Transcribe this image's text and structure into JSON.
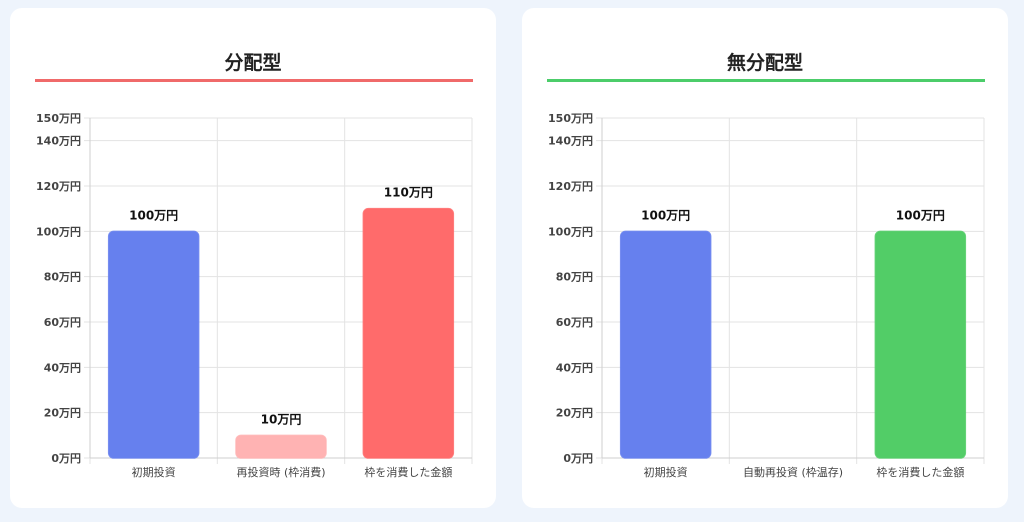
{
  "chart_data": [
    {
      "type": "bar",
      "title": "分配型",
      "accent": "#f06a6a",
      "categories": [
        "初期投資",
        "再投資時 (枠消費)",
        "枠を消費した金額"
      ],
      "values": [
        100,
        10,
        110
      ],
      "data_labels": [
        "100万円",
        "10万円",
        "110万円"
      ],
      "colors": [
        "#6680ee",
        "#ffb3b3",
        "#ff6b6b"
      ],
      "ylim": [
        0,
        150
      ],
      "yticks": [
        0,
        20,
        40,
        60,
        80,
        100,
        120,
        140,
        150
      ],
      "ytick_labels": [
        "0万円",
        "20万円",
        "40万円",
        "60万円",
        "80万円",
        "100万円",
        "120万円",
        "140万円",
        "150万円"
      ],
      "grid": true
    },
    {
      "type": "bar",
      "title": "無分配型",
      "accent": "#4ccd6a",
      "categories": [
        "初期投資",
        "自動再投資 (枠温存)",
        "枠を消費した金額"
      ],
      "values": [
        100,
        0,
        100
      ],
      "data_labels": [
        "100万円",
        "",
        "100万円"
      ],
      "colors": [
        "#6680ee",
        "#4ccd6a",
        "#52cd67"
      ],
      "ylim": [
        0,
        150
      ],
      "yticks": [
        0,
        20,
        40,
        60,
        80,
        100,
        120,
        140,
        150
      ],
      "ytick_labels": [
        "0万円",
        "20万円",
        "40万円",
        "60万円",
        "80万円",
        "100万円",
        "120万円",
        "140万円",
        "150万円"
      ],
      "grid": true
    }
  ]
}
